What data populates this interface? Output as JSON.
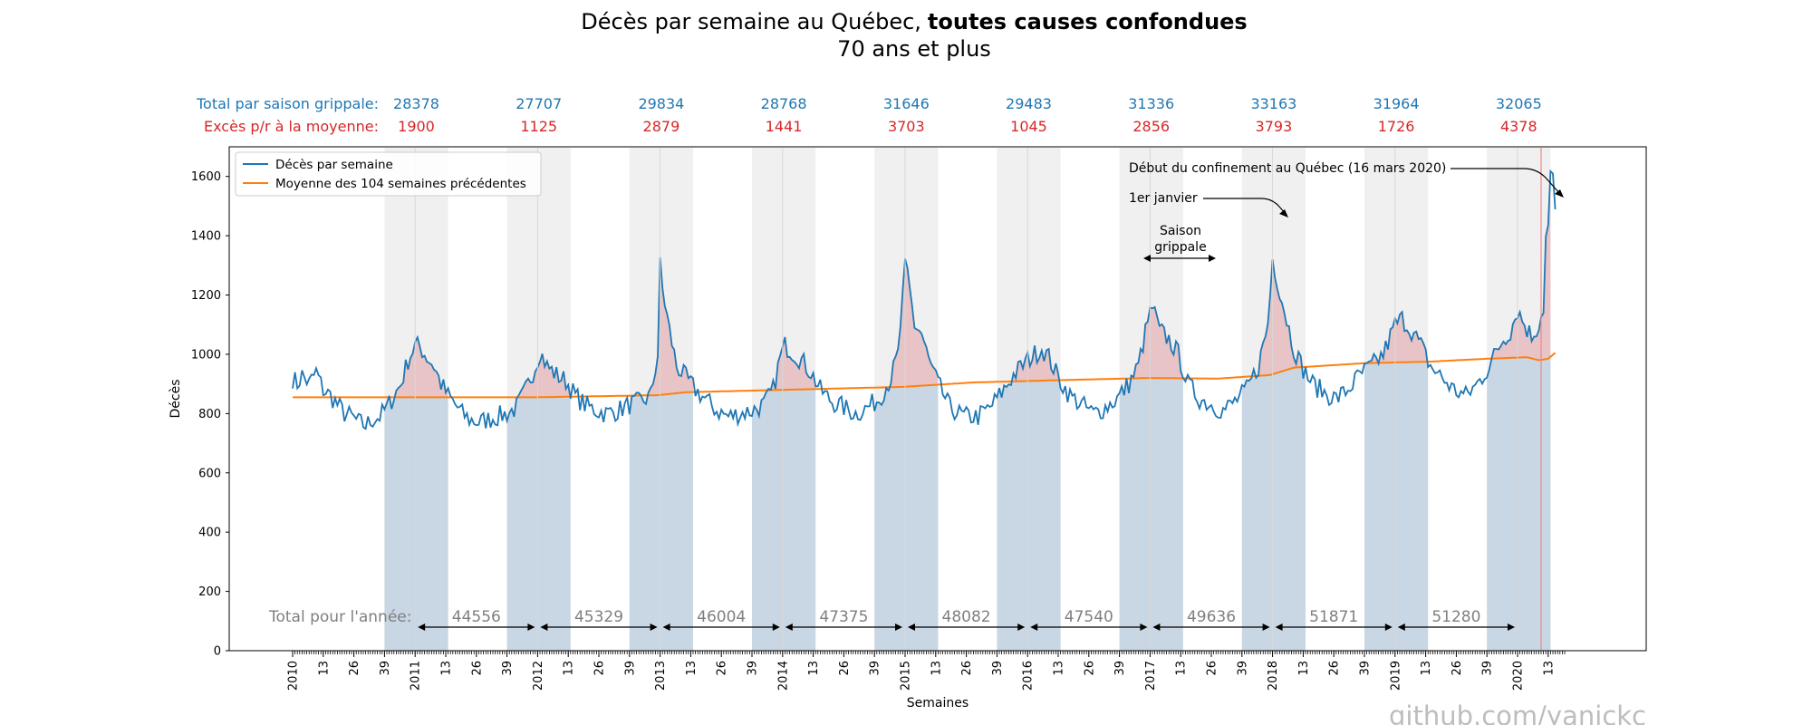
{
  "chart_data": {
    "type": "line",
    "title": "Décès par semaine au Québec,",
    "title_bold": "toutes causes confondues",
    "subtitle": "70 ans et plus",
    "xlabel": "Semaines",
    "ylabel": "Décès",
    "ylim": [
      0,
      1700
    ],
    "yticks": [
      0,
      200,
      400,
      600,
      800,
      1000,
      1200,
      1400,
      1600
    ],
    "x_start": "2010-01",
    "weeks_per_year": 52,
    "week_tick_labels": [
      "13",
      "26",
      "39"
    ],
    "years": [
      "2010",
      "2011",
      "2012",
      "2013",
      "2014",
      "2015",
      "2016",
      "2017",
      "2018",
      "2019",
      "2020"
    ],
    "legend": {
      "placement": "top-left",
      "entries": [
        "Décès par semaine",
        "Moyenne des 104 semaines précédentes"
      ]
    },
    "colors": {
      "weekly": "#1f77b4",
      "average": "#ff7f0e",
      "season_band": "#f0f0f0",
      "under_avg_fill": "#c9d6e3",
      "excess_fill": "#e8c4c6",
      "confinement_line": "#e88a8a",
      "season_labels": "#1f77b4",
      "excess_labels": "#d62728"
    },
    "season_row": {
      "label": "Total par saison grippale:",
      "values": [
        "28378",
        "27707",
        "29834",
        "28768",
        "31646",
        "29483",
        "31336",
        "33163",
        "31964",
        "32065"
      ]
    },
    "excess_row": {
      "label": "Excès p/r à la moyenne:",
      "values": [
        "1900",
        "1125",
        "2879",
        "1441",
        "3703",
        "1045",
        "2856",
        "3793",
        "1726",
        "4378"
      ]
    },
    "year_totals": {
      "label": "Total pour l'année:",
      "values": [
        "44556",
        "45329",
        "46004",
        "47375",
        "48082",
        "47540",
        "49636",
        "51871",
        "51280"
      ]
    },
    "flu_seasons": [
      {
        "start": "2010-W40",
        "end": "2011-W15"
      },
      {
        "start": "2011-W40",
        "end": "2012-W15"
      },
      {
        "start": "2012-W40",
        "end": "2013-W15"
      },
      {
        "start": "2013-W40",
        "end": "2014-W15"
      },
      {
        "start": "2014-W40",
        "end": "2015-W15"
      },
      {
        "start": "2015-W40",
        "end": "2016-W15"
      },
      {
        "start": "2016-W40",
        "end": "2017-W15"
      },
      {
        "start": "2017-W40",
        "end": "2018-W15"
      },
      {
        "start": "2018-W40",
        "end": "2019-W15"
      },
      {
        "start": "2019-W40",
        "end": "2020-W15"
      }
    ],
    "annotations": {
      "confinement": "Début du confinement au Québec (16 mars 2020)",
      "confinement_week": "2020-W11",
      "january": "1er janvier",
      "season_line1": "Saison",
      "season_line2": "grippale"
    },
    "series": [
      {
        "name": "Décès par semaine",
        "key_points": [
          [
            "2010-W01",
            920
          ],
          [
            "2010-W03",
            900
          ],
          [
            "2010-W05",
            930
          ],
          [
            "2010-W08",
            900
          ],
          [
            "2010-W11",
            940
          ],
          [
            "2010-W14",
            880
          ],
          [
            "2010-W17",
            860
          ],
          [
            "2010-W20",
            830
          ],
          [
            "2010-W23",
            800
          ],
          [
            "2010-W26",
            790
          ],
          [
            "2010-W29",
            770
          ],
          [
            "2010-W32",
            760
          ],
          [
            "2010-W35",
            780
          ],
          [
            "2010-W38",
            790
          ],
          [
            "2010-W41",
            820
          ],
          [
            "2010-W44",
            860
          ],
          [
            "2010-W47",
            900
          ],
          [
            "2010-W50",
            980
          ],
          [
            "2011-W01",
            1030
          ],
          [
            "2011-W03",
            1025
          ],
          [
            "2011-W06",
            990
          ],
          [
            "2011-W09",
            960
          ],
          [
            "2011-W12",
            900
          ],
          [
            "2011-W15",
            860
          ],
          [
            "2011-W18",
            830
          ],
          [
            "2011-W21",
            800
          ],
          [
            "2011-W24",
            780
          ],
          [
            "2011-W28",
            770
          ],
          [
            "2011-W32",
            780
          ],
          [
            "2011-W36",
            790
          ],
          [
            "2011-W40",
            800
          ],
          [
            "2011-W44",
            820
          ],
          [
            "2011-W48",
            880
          ],
          [
            "2011-W52",
            960
          ],
          [
            "2012-W02",
            1010
          ],
          [
            "2012-W05",
            960
          ],
          [
            "2012-W09",
            930
          ],
          [
            "2012-W13",
            910
          ],
          [
            "2012-W17",
            860
          ],
          [
            "2012-W21",
            830
          ],
          [
            "2012-W26",
            810
          ],
          [
            "2012-W30",
            800
          ],
          [
            "2012-W35",
            810
          ],
          [
            "2012-W40",
            830
          ],
          [
            "2012-W45",
            840
          ],
          [
            "2012-W49",
            860
          ],
          [
            "2012-W52",
            1000
          ],
          [
            "2013-W01",
            1300
          ],
          [
            "2013-W02",
            1220
          ],
          [
            "2013-W05",
            1080
          ],
          [
            "2013-W08",
            960
          ],
          [
            "2013-W12",
            920
          ],
          [
            "2013-W16",
            880
          ],
          [
            "2013-W20",
            850
          ],
          [
            "2013-W25",
            810
          ],
          [
            "2013-W30",
            790
          ],
          [
            "2013-W35",
            800
          ],
          [
            "2013-W40",
            810
          ],
          [
            "2013-W45",
            830
          ],
          [
            "2013-W49",
            880
          ],
          [
            "2013-W52",
            990
          ],
          [
            "2014-W02",
            1030
          ],
          [
            "2014-W05",
            1010
          ],
          [
            "2014-W09",
            980
          ],
          [
            "2014-W13",
            940
          ],
          [
            "2014-W17",
            880
          ],
          [
            "2014-W22",
            840
          ],
          [
            "2014-W27",
            820
          ],
          [
            "2014-W32",
            800
          ],
          [
            "2014-W37",
            820
          ],
          [
            "2014-W42",
            850
          ],
          [
            "2014-W47",
            920
          ],
          [
            "2014-W50",
            1000
          ],
          [
            "2015-W01",
            1290
          ],
          [
            "2015-W02",
            1270
          ],
          [
            "2015-W05",
            1100
          ],
          [
            "2015-W08",
            1070
          ],
          [
            "2015-W11",
            980
          ],
          [
            "2015-W15",
            900
          ],
          [
            "2015-W20",
            820
          ],
          [
            "2015-W26",
            790
          ],
          [
            "2015-W32",
            790
          ],
          [
            "2015-W37",
            820
          ],
          [
            "2015-W42",
            870
          ],
          [
            "2015-W47",
            930
          ],
          [
            "2016-W01",
            980
          ],
          [
            "2016-W04",
            1000
          ],
          [
            "2016-W07",
            1020
          ],
          [
            "2016-W10",
            990
          ],
          [
            "2016-W14",
            920
          ],
          [
            "2016-W19",
            860
          ],
          [
            "2016-W24",
            830
          ],
          [
            "2016-W29",
            800
          ],
          [
            "2016-W34",
            820
          ],
          [
            "2016-W39",
            850
          ],
          [
            "2016-W44",
            900
          ],
          [
            "2016-W48",
            960
          ],
          [
            "2016-W52",
            1110
          ],
          [
            "2017-W02",
            1160
          ],
          [
            "2017-W05",
            1080
          ],
          [
            "2017-W09",
            1050
          ],
          [
            "2017-W13",
            1000
          ],
          [
            "2017-W17",
            900
          ],
          [
            "2017-W22",
            850
          ],
          [
            "2017-W27",
            830
          ],
          [
            "2017-W32",
            810
          ],
          [
            "2017-W37",
            840
          ],
          [
            "2017-W42",
            880
          ],
          [
            "2017-W47",
            960
          ],
          [
            "2017-W51",
            1100
          ],
          [
            "2018-W01",
            1320
          ],
          [
            "2018-W03",
            1250
          ],
          [
            "2018-W06",
            1150
          ],
          [
            "2018-W10",
            1020
          ],
          [
            "2018-W14",
            950
          ],
          [
            "2018-W18",
            900
          ],
          [
            "2018-W23",
            870
          ],
          [
            "2018-W28",
            850
          ],
          [
            "2018-W33",
            880
          ],
          [
            "2018-W38",
            930
          ],
          [
            "2018-W43",
            960
          ],
          [
            "2018-W48",
            1000
          ],
          [
            "2019-W01",
            1100
          ],
          [
            "2019-W04",
            1120
          ],
          [
            "2019-W08",
            1080
          ],
          [
            "2019-W12",
            1030
          ],
          [
            "2019-W16",
            960
          ],
          [
            "2019-W21",
            920
          ],
          [
            "2019-W26",
            880
          ],
          [
            "2019-W31",
            860
          ],
          [
            "2019-W36",
            900
          ],
          [
            "2019-W41",
            960
          ],
          [
            "2019-W46",
            1040
          ],
          [
            "2019-W50",
            1080
          ],
          [
            "2020-W01",
            1150
          ],
          [
            "2020-W04",
            1100
          ],
          [
            "2020-W07",
            1060
          ],
          [
            "2020-W10",
            1100
          ],
          [
            "2020-W12",
            1160
          ],
          [
            "2020-W13",
            1390
          ],
          [
            "2020-W14",
            1430
          ],
          [
            "2020-W15",
            1600
          ],
          [
            "2020-W16",
            1590
          ],
          [
            "2020-W17",
            1490
          ]
        ]
      },
      {
        "name": "Moyenne des 104 semaines précédentes",
        "key_points": [
          [
            "2010-W01",
            855
          ],
          [
            "2012-W01",
            855
          ],
          [
            "2012-W52",
            862
          ],
          [
            "2013-W12",
            872
          ],
          [
            "2014-W01",
            880
          ],
          [
            "2014-W52",
            890
          ],
          [
            "2015-W30",
            905
          ],
          [
            "2016-W26",
            915
          ],
          [
            "2017-W01",
            920
          ],
          [
            "2017-W30",
            918
          ],
          [
            "2017-W52",
            930
          ],
          [
            "2018-W10",
            955
          ],
          [
            "2018-W40",
            970
          ],
          [
            "2019-W15",
            975
          ],
          [
            "2019-W40",
            985
          ],
          [
            "2020-W05",
            990
          ],
          [
            "2020-W10",
            980
          ],
          [
            "2020-W14",
            985
          ],
          [
            "2020-W17",
            1005
          ]
        ]
      }
    ]
  },
  "watermark": "github.com/yanickc"
}
